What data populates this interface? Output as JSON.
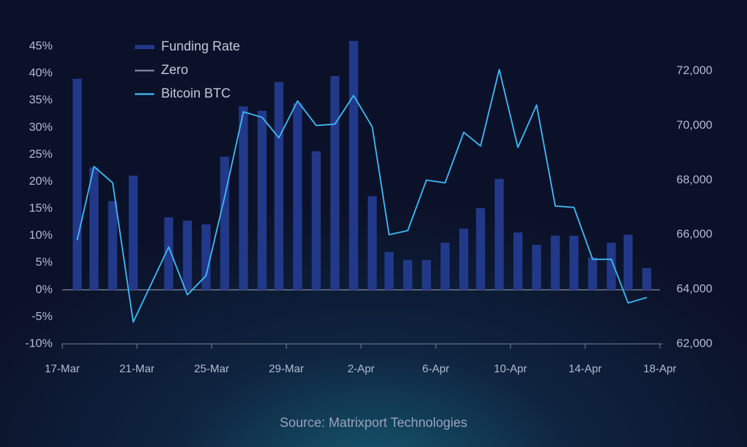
{
  "chart_data": {
    "type": "combo",
    "source": "Source: Matrixport Technologies",
    "x": [
      0.8,
      1.7,
      2.7,
      3.8,
      5.7,
      6.7,
      7.7,
      8.7,
      9.7,
      10.7,
      11.6,
      12.6,
      13.6,
      14.6,
      15.6,
      16.6,
      17.5,
      18.5,
      19.5,
      20.5,
      21.5,
      22.4,
      23.4,
      24.4,
      25.4,
      26.4,
      27.4,
      28.4,
      29.4,
      30.3,
      31.3
    ],
    "series": [
      {
        "name": "Funding Rate",
        "type": "bar",
        "color": "#22398a",
        "values": [
          39.0,
          22.6,
          16.4,
          21.1,
          13.4,
          12.8,
          12.1,
          24.6,
          33.9,
          33.1,
          38.4,
          34.5,
          25.6,
          39.5,
          46.0,
          17.3,
          7.0,
          5.5,
          5.5,
          8.7,
          11.3,
          15.1,
          20.5,
          10.6,
          8.3,
          10.0,
          10.0,
          6.0,
          8.7,
          10.2,
          4.0
        ]
      },
      {
        "name": "Zero",
        "type": "line",
        "color": "#7d8599",
        "x": [
          0,
          32
        ],
        "values": [
          0,
          0
        ]
      },
      {
        "name": "Bitcoin BTC",
        "type": "line",
        "axis": "y2",
        "color": "#3fb4f0",
        "values": [
          65800,
          68500,
          67900,
          62800,
          65550,
          63800,
          64500,
          67400,
          70500,
          70300,
          69550,
          70900,
          70000,
          70050,
          71100,
          69950,
          66000,
          66150,
          68000,
          67900,
          69750,
          69250,
          72050,
          69200,
          70750,
          67050,
          67000,
          65100,
          65100,
          63500,
          63700
        ]
      }
    ],
    "xlim": [
      0,
      32
    ],
    "xticks": [
      {
        "value": 0,
        "label": "17-Mar"
      },
      {
        "value": 4,
        "label": "21-Mar"
      },
      {
        "value": 8,
        "label": "25-Mar"
      },
      {
        "value": 12,
        "label": "29-Mar"
      },
      {
        "value": 16,
        "label": "2-Apr"
      },
      {
        "value": 20,
        "label": "6-Apr"
      },
      {
        "value": 24,
        "label": "10-Apr"
      },
      {
        "value": 28,
        "label": "14-Apr"
      },
      {
        "value": 32,
        "label": "18-Apr"
      }
    ],
    "ylim": [
      -10,
      45
    ],
    "yticks": [
      {
        "value": -10,
        "label": "-10%"
      },
      {
        "value": -5,
        "label": "-5%"
      },
      {
        "value": 0,
        "label": "0%"
      },
      {
        "value": 5,
        "label": "5%"
      },
      {
        "value": 10,
        "label": "10%"
      },
      {
        "value": 15,
        "label": "15%"
      },
      {
        "value": 20,
        "label": "20%"
      },
      {
        "value": 25,
        "label": "25%"
      },
      {
        "value": 30,
        "label": "30%"
      },
      {
        "value": 35,
        "label": "35%"
      },
      {
        "value": 40,
        "label": "40%"
      },
      {
        "value": 45,
        "label": "45%"
      }
    ],
    "y2lim": [
      62000,
      72900
    ],
    "y2ticks": [
      {
        "value": 62000,
        "label": "62,000"
      },
      {
        "value": 64000,
        "label": "64,000"
      },
      {
        "value": 66000,
        "label": "66,000"
      },
      {
        "value": 68000,
        "label": "68,000"
      },
      {
        "value": 70000,
        "label": "70,000"
      },
      {
        "value": 72000,
        "label": "72,000"
      }
    ],
    "legend": "top-left"
  }
}
